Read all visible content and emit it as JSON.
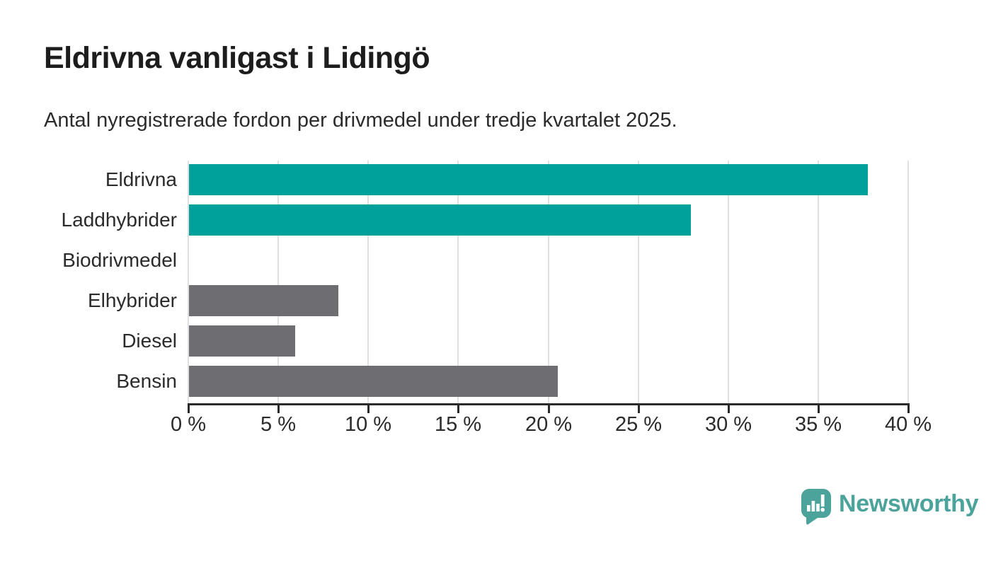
{
  "chart_data": {
    "type": "bar",
    "orientation": "horizontal",
    "title": "Eldrivna vanligast i Lidingö",
    "subtitle": "Antal nyregistrerade fordon per drivmedel under tredje kvartalet 2025.",
    "categories": [
      "Eldrivna",
      "Laddhybrider",
      "Biodrivmedel",
      "Elhybrider",
      "Diesel",
      "Bensin"
    ],
    "values": [
      37.7,
      27.9,
      0,
      8.3,
      5.9,
      20.5
    ],
    "unit": "%",
    "xlabel": "",
    "ylabel": "",
    "xlim": [
      0,
      40
    ],
    "x_tick_step": 5,
    "x_tick_labels": [
      "0 %",
      "5 %",
      "10 %",
      "15 %",
      "20 %",
      "25 %",
      "30 %",
      "35 %",
      "40 %"
    ],
    "grid": true,
    "legend": false,
    "colors": {
      "highlight": "#00A09B",
      "default": "#6E6E72",
      "series_colors": [
        "#00A09B",
        "#00A09B",
        "#6E6E72",
        "#6E6E72",
        "#6E6E72",
        "#6E6E72"
      ]
    }
  },
  "logo": {
    "text": "Newsworthy",
    "color": "#4BA39C",
    "icon": "newsworthy-speech-bubble-barchart-icon"
  }
}
